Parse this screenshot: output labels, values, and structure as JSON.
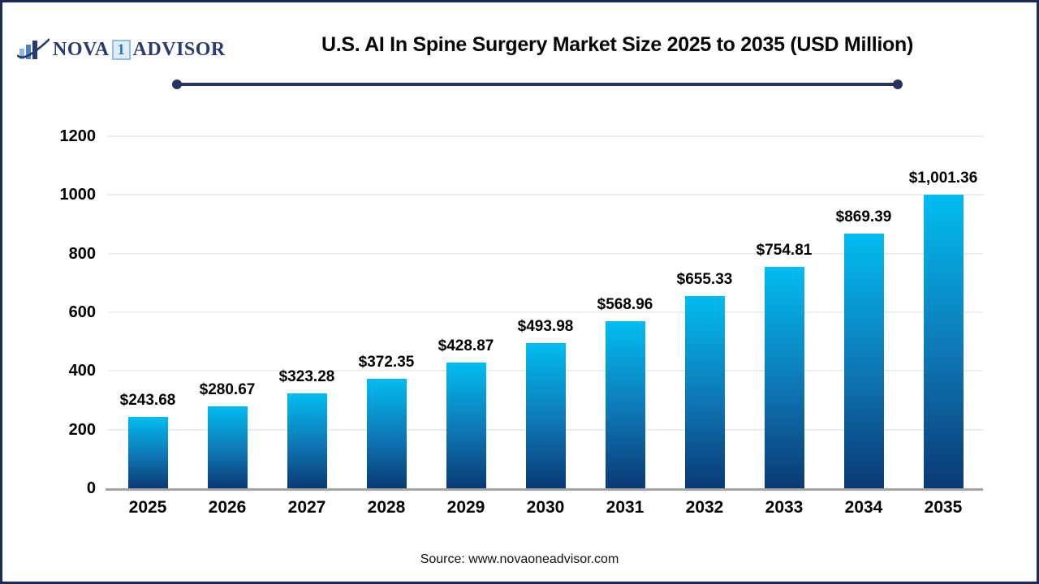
{
  "header": {
    "logo": {
      "part1": "NOVA",
      "part2": "1",
      "part3": "ADVISOR",
      "icon": "bar-chart-swoosh-icon"
    },
    "title": "U.S. AI In Spine Surgery Market Size 2025 to 2035 (USD Million)"
  },
  "chart_data": {
    "type": "bar",
    "title": "U.S. AI In Spine Surgery Market Size 2025 to 2035 (USD Million)",
    "categories": [
      "2025",
      "2026",
      "2027",
      "2028",
      "2029",
      "2030",
      "2031",
      "2032",
      "2033",
      "2034",
      "2035"
    ],
    "values": [
      243.68,
      280.67,
      323.28,
      372.35,
      428.87,
      493.98,
      568.96,
      655.33,
      754.81,
      869.39,
      1001.36
    ],
    "value_labels": [
      "$243.68",
      "$280.67",
      "$323.28",
      "$372.35",
      "$428.87",
      "$493.98",
      "$568.96",
      "$655.33",
      "$754.81",
      "$869.39",
      "$1,001.36"
    ],
    "unit": "USD Million",
    "xlabel": "",
    "ylabel": "",
    "ylim": [
      0,
      1200
    ],
    "yticks": [
      0,
      200,
      400,
      600,
      800,
      1000,
      1200
    ],
    "grid": "horizontal",
    "legend": "none",
    "bar_color_top": "#01bdf0",
    "bar_color_bottom": "#093a74"
  },
  "footer": {
    "source": "Source: www.novaoneadvisor.com"
  },
  "colors": {
    "accent_navy": "#24335f",
    "border_navy": "#1c2b5a",
    "logo_navy": "#2c3b6d",
    "gridline": "#ececec",
    "axis_line": "#a3a3a3"
  }
}
